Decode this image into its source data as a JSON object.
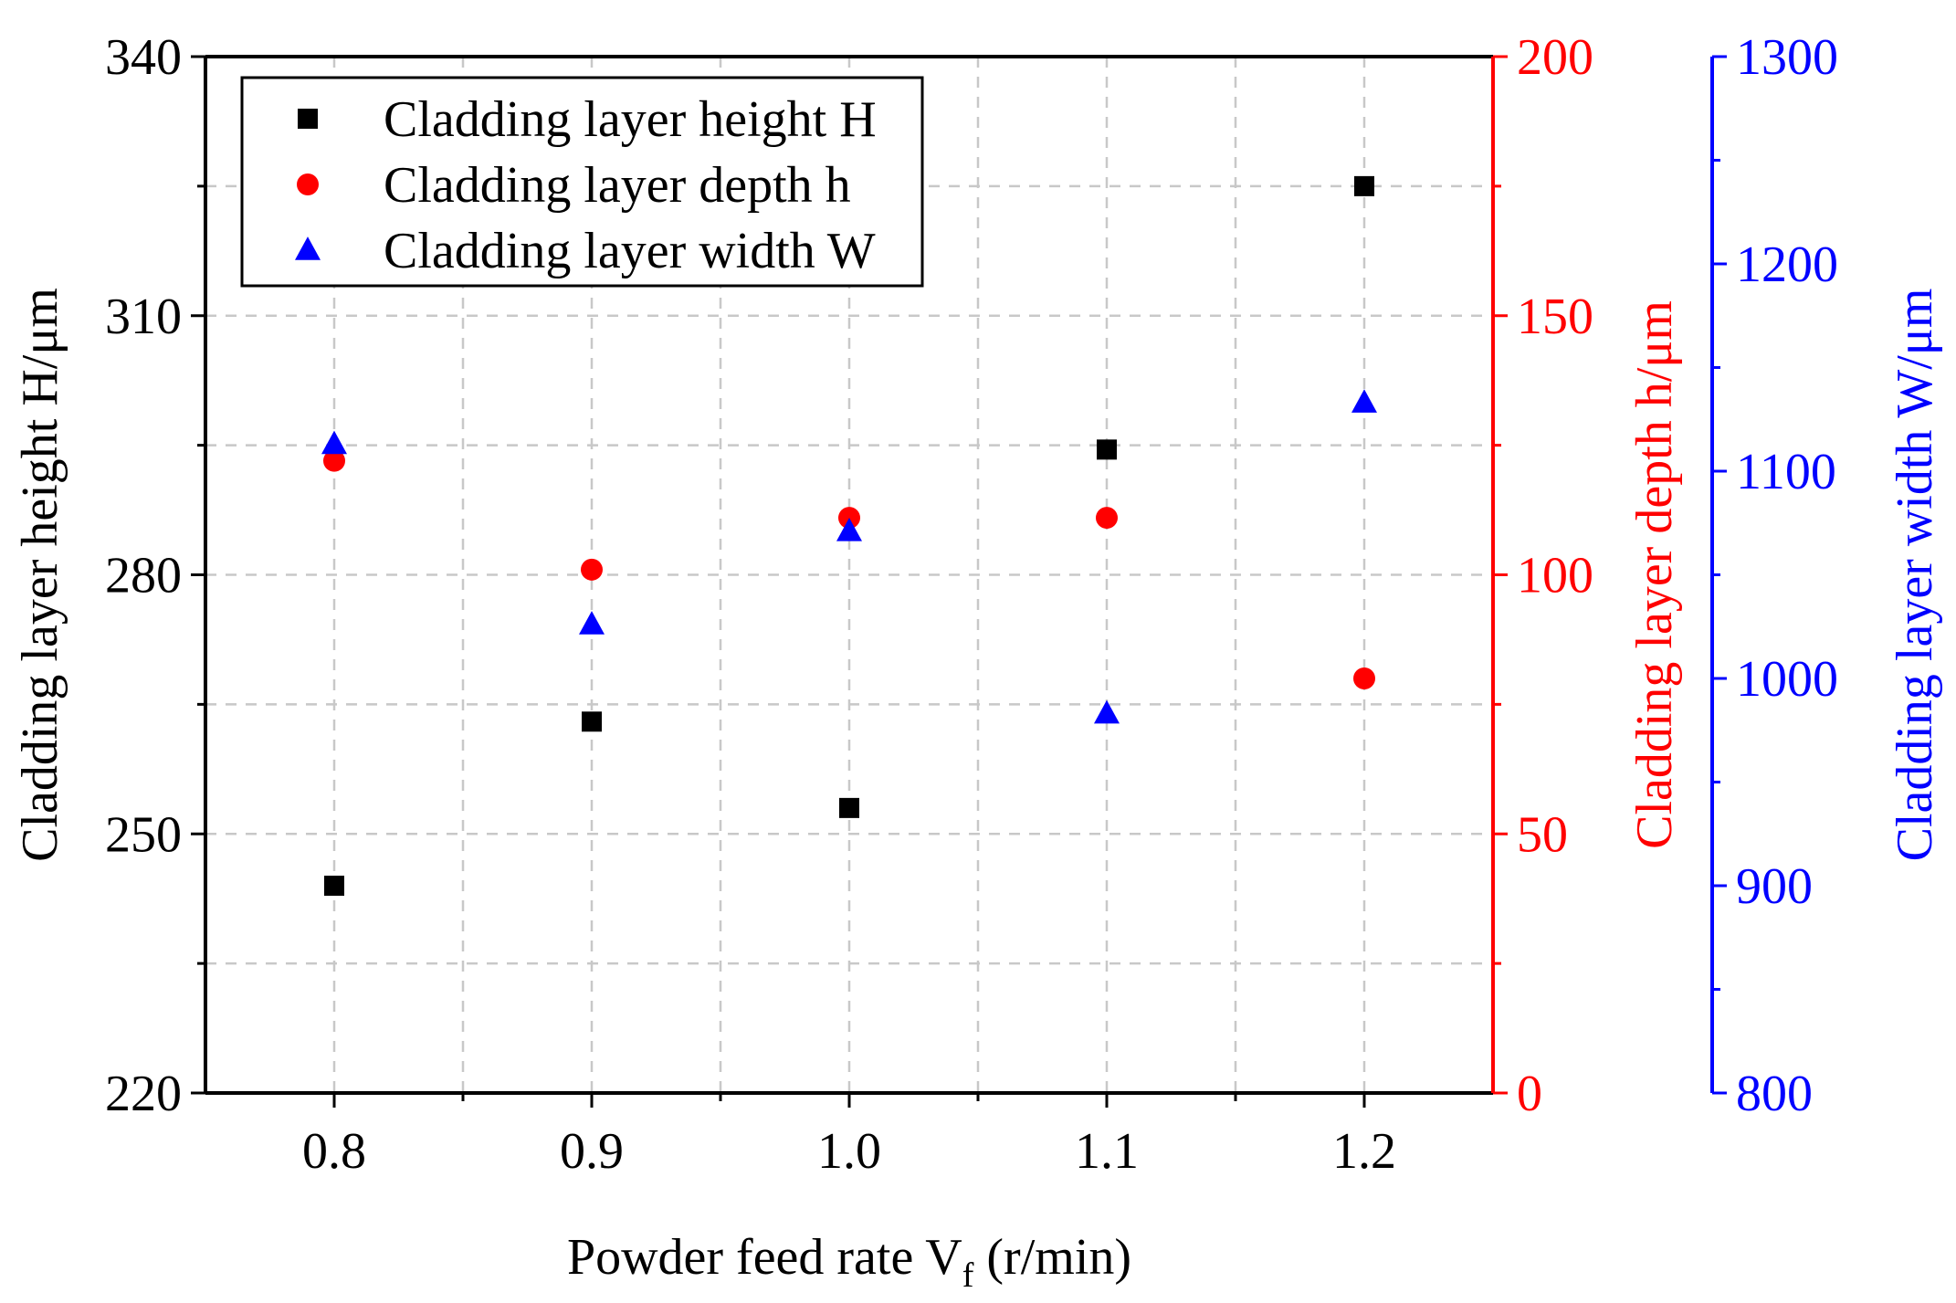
{
  "chart_data": {
    "type": "scatter",
    "x": [
      0.8,
      0.9,
      1.0,
      1.1,
      1.2
    ],
    "x_tick_labels": [
      "0.8",
      "0.9",
      "1.0",
      "1.1",
      "1.2"
    ],
    "xlim": [
      0.75,
      1.25
    ],
    "xlabel_main": "Powder feed rate V",
    "xlabel_sub": "f",
    "xlabel_unit": " (r/min)",
    "axes": [
      {
        "id": "left",
        "label": "Cladding layer height H/μm",
        "ylim": [
          220,
          340
        ],
        "ticks": [
          220,
          250,
          280,
          310,
          340
        ],
        "tick_labels": [
          "220",
          "250",
          "280",
          "310",
          "340"
        ],
        "minor_ticks": [
          235,
          265,
          295,
          325
        ],
        "color": "#000000"
      },
      {
        "id": "right1",
        "label": "Cladding layer depth h/μm",
        "ylim": [
          0,
          200
        ],
        "ticks": [
          0,
          50,
          100,
          150,
          200
        ],
        "tick_labels": [
          "0",
          "50",
          "100",
          "150",
          "200"
        ],
        "minor_ticks": [
          25,
          75,
          125,
          175
        ],
        "color": "#ff0000"
      },
      {
        "id": "right2",
        "label": "Cladding layer width W/μm",
        "ylim": [
          800,
          1300
        ],
        "ticks": [
          800,
          900,
          1000,
          1100,
          1200,
          1300
        ],
        "tick_labels": [
          "800",
          "900",
          "1000",
          "1100",
          "1200",
          "1300"
        ],
        "minor_ticks": [
          850,
          950,
          1050,
          1150,
          1250
        ],
        "color": "#0000ff"
      }
    ],
    "series": [
      {
        "name": "Cladding layer height H",
        "axis": "left",
        "marker": "square",
        "color": "#000000",
        "values": [
          244,
          263,
          253,
          294.5,
          325
        ]
      },
      {
        "name": "Cladding layer depth h",
        "axis": "right1",
        "marker": "circle",
        "color": "#ff0000",
        "values": [
          122,
          101,
          111,
          111,
          80
        ]
      },
      {
        "name": "Cladding layer width W",
        "axis": "right2",
        "marker": "triangle",
        "color": "#0000ff",
        "values": [
          1113,
          1026,
          1071,
          983,
          1133
        ]
      }
    ],
    "grid": true,
    "legend_position": "top-left"
  }
}
